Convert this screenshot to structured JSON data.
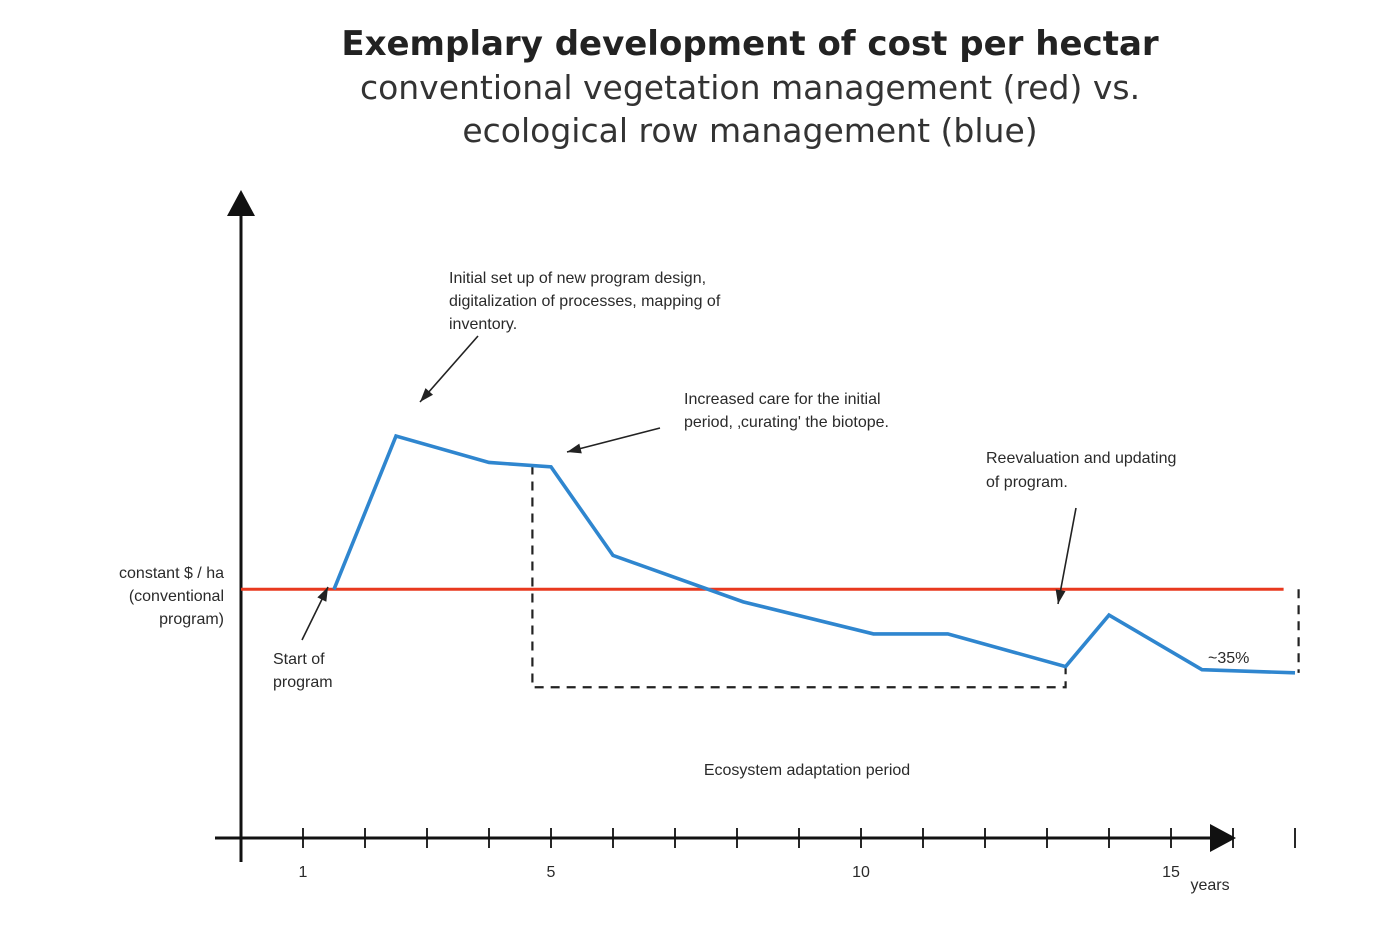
{
  "chart_data": {
    "type": "line",
    "title": "Exemplary development of cost per hectar",
    "subtitle_line1": "conventional vegetation management (red) vs.",
    "subtitle_line2": "ecological row management (blue)",
    "xlabel": "years",
    "ylabel": "",
    "xlim": [
      0,
      17.4
    ],
    "ylim": [
      0,
      100
    ],
    "x_ticks": [
      1,
      2,
      3,
      4,
      5,
      6,
      7,
      8,
      9,
      10,
      11,
      12,
      13,
      14,
      15,
      16,
      17
    ],
    "x_tick_labels": [
      {
        "x": 1,
        "label": "1"
      },
      {
        "x": 5,
        "label": "5"
      },
      {
        "x": 10,
        "label": "10"
      },
      {
        "x": 15,
        "label": "15"
      }
    ],
    "series": [
      {
        "name": "conventional vegetation management",
        "color": "#e8391f",
        "x": [
          0,
          17.3
        ],
        "y": [
          39.6,
          39.6
        ]
      },
      {
        "name": "ecological row management",
        "color": "#2f86cf",
        "x": [
          1.5,
          2.5,
          4,
          5,
          6,
          8.1,
          10.2,
          11.4,
          13.3,
          14,
          15.5,
          17
        ],
        "y": [
          39.6,
          64,
          59.8,
          59.1,
          45,
          37.6,
          32.5,
          32.5,
          27.3,
          35.5,
          26.8,
          26.3
        ]
      }
    ],
    "y_level_label": [
      "constant $ / ha",
      "(conventional",
      "program)"
    ],
    "annotations": {
      "setup": [
        "Initial set up of new program design,",
        "digitalization of processes, mapping of",
        "inventory."
      ],
      "care": [
        "Increased care for the initial",
        "period, ‚curating' the biotope."
      ],
      "reeval": [
        "Reevaluation and updating",
        "of program."
      ],
      "start": [
        "Start of",
        "program"
      ],
      "adaptation": "Ecosystem adaptation period",
      "reduction": "~35%"
    },
    "adaptation_period": {
      "x": [
        4.7,
        13.3
      ],
      "y_bottom": 24
    },
    "reduction_marker": {
      "x": 17.3,
      "y_from": 39.6,
      "y_to": 26.3
    }
  }
}
